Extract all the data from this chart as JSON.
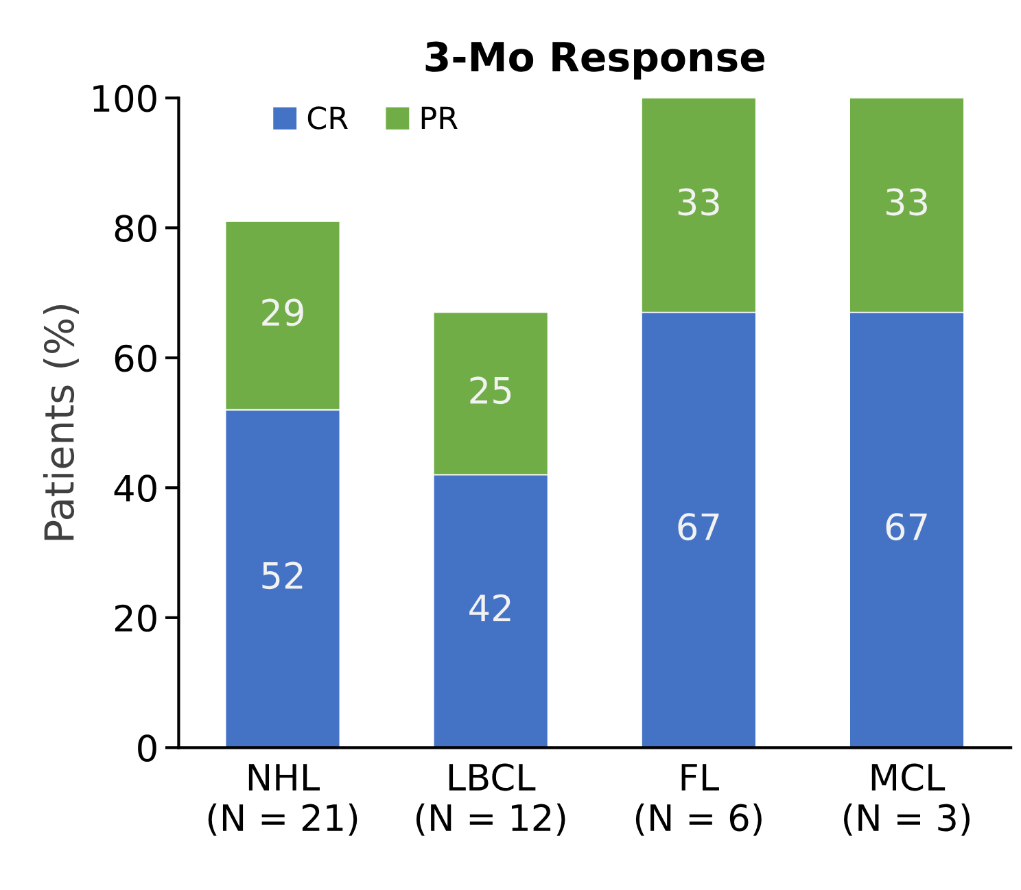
{
  "chart_data": {
    "type": "bar",
    "title": "3-Mo Response",
    "ylabel": "Patients (%)",
    "categories": [
      "NHL\n(N = 21)",
      "LBCL\n(N = 12)",
      "FL\n(N = 6)",
      "MCL\n(N = 3)"
    ],
    "series": [
      {
        "name": "CR",
        "color": "#4472c4",
        "values": [
          52,
          42,
          67,
          67
        ]
      },
      {
        "name": "PR",
        "color": "#70ad47",
        "values": [
          29,
          25,
          33,
          33
        ]
      }
    ],
    "stacked": true,
    "data_labels": true,
    "ylim": [
      0,
      100
    ],
    "yticks": [
      0,
      20,
      40,
      60,
      80,
      100
    ],
    "grid": false,
    "legend": "top left"
  }
}
